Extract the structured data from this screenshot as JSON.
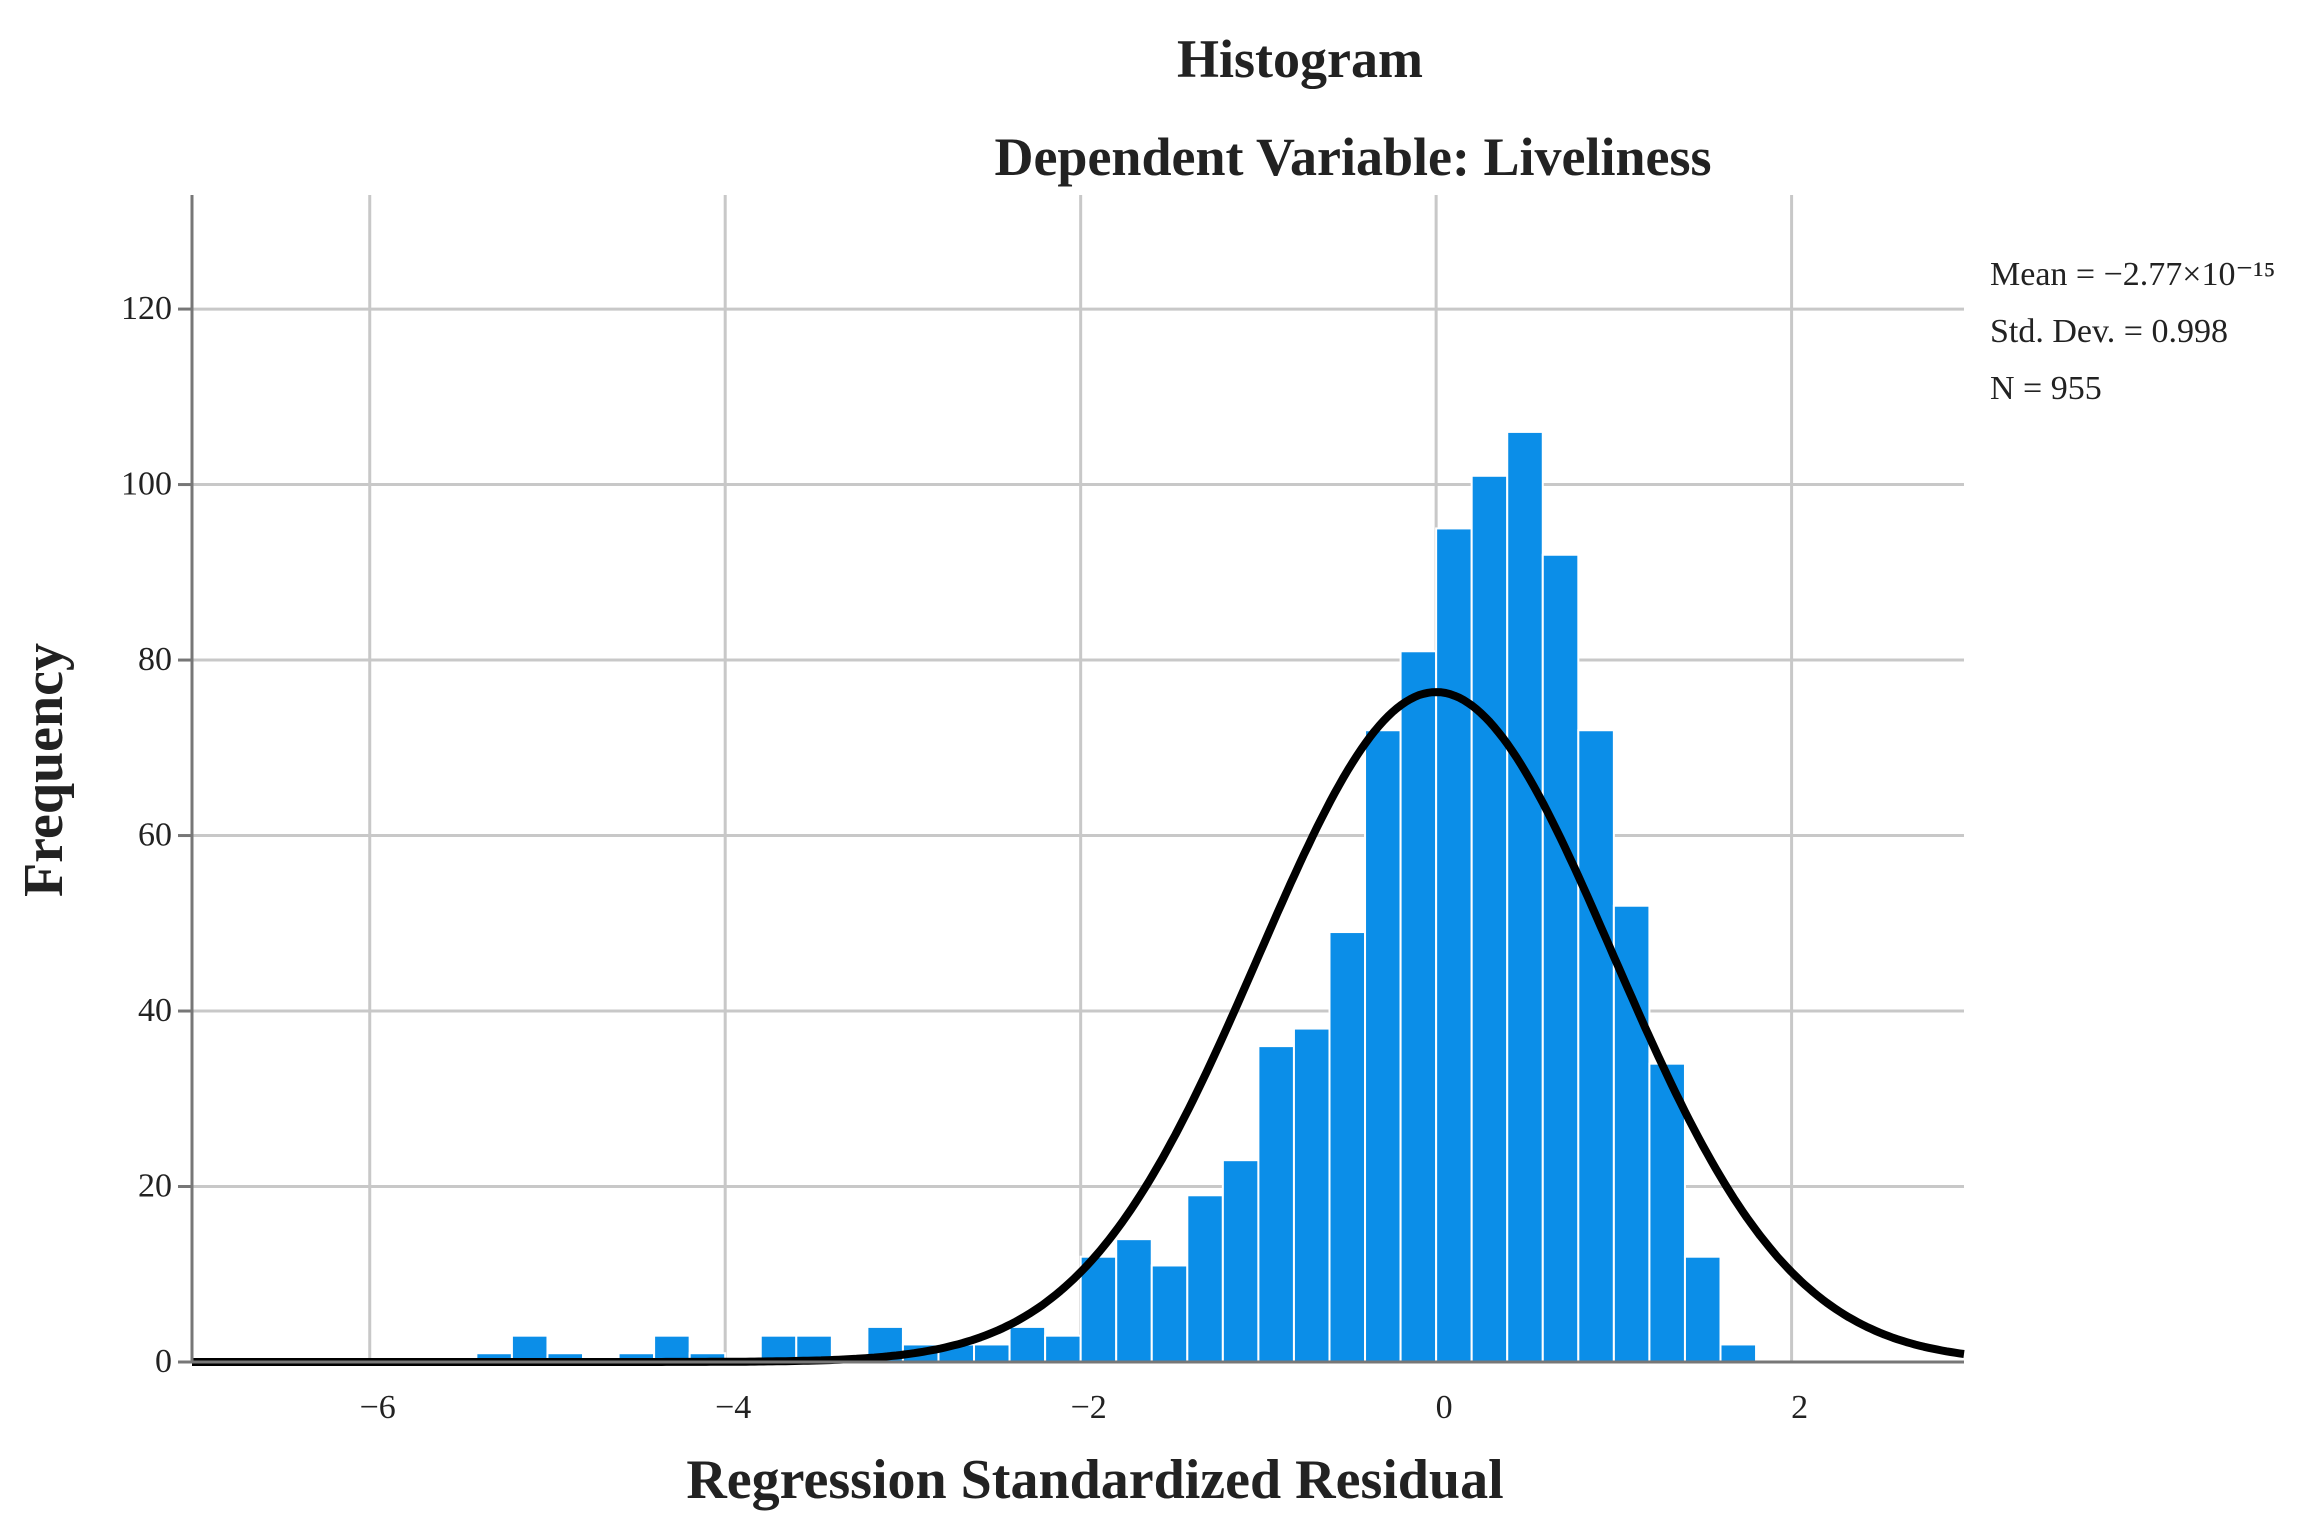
{
  "chart_data": {
    "type": "bar",
    "subtype": "histogram-with-normal-curve",
    "title": "Histogram",
    "subtitle": "Dependent Variable: Liveliness",
    "xlabel": "Regression Standardized Residual",
    "ylabel": "Frequency",
    "xlim": [
      -7.0,
      2.97
    ],
    "ylim": [
      0,
      133
    ],
    "x_ticks": [
      -6,
      -4,
      -2,
      0,
      2
    ],
    "x_tick_labels": [
      "−6",
      "−4",
      "−2",
      "0",
      "2"
    ],
    "y_ticks": [
      0,
      20,
      40,
      60,
      80,
      100,
      120
    ],
    "y_tick_labels": [
      "0",
      "20",
      "40",
      "60",
      "80",
      "100",
      "120"
    ],
    "bin_width": 0.2,
    "bins": [
      {
        "start": -5.4,
        "value": 1
      },
      {
        "start": -5.2,
        "value": 3
      },
      {
        "start": -5.0,
        "value": 1
      },
      {
        "start": -4.6,
        "value": 1
      },
      {
        "start": -4.4,
        "value": 3
      },
      {
        "start": -4.2,
        "value": 1
      },
      {
        "start": -3.8,
        "value": 3
      },
      {
        "start": -3.6,
        "value": 3
      },
      {
        "start": -3.2,
        "value": 4
      },
      {
        "start": -3.0,
        "value": 2
      },
      {
        "start": -2.8,
        "value": 2
      },
      {
        "start": -2.6,
        "value": 2
      },
      {
        "start": -2.4,
        "value": 4
      },
      {
        "start": -2.2,
        "value": 3
      },
      {
        "start": -2.0,
        "value": 12
      },
      {
        "start": -1.8,
        "value": 14
      },
      {
        "start": -1.6,
        "value": 11
      },
      {
        "start": -1.4,
        "value": 19
      },
      {
        "start": -1.2,
        "value": 23
      },
      {
        "start": -1.0,
        "value": 36
      },
      {
        "start": -0.8,
        "value": 38
      },
      {
        "start": -0.6,
        "value": 49
      },
      {
        "start": -0.4,
        "value": 72
      },
      {
        "start": -0.2,
        "value": 81
      },
      {
        "start": 0.0,
        "value": 95
      },
      {
        "start": 0.2,
        "value": 101
      },
      {
        "start": 0.4,
        "value": 106
      },
      {
        "start": 0.6,
        "value": 92
      },
      {
        "start": 0.8,
        "value": 72
      },
      {
        "start": 1.0,
        "value": 52
      },
      {
        "start": 1.2,
        "value": 34
      },
      {
        "start": 1.4,
        "value": 12
      },
      {
        "start": 1.6,
        "value": 2
      }
    ],
    "normal_curve": {
      "mean": 0,
      "std": 0.998,
      "n": 955
    },
    "stats": {
      "mean_label": "Mean = −2.77×10⁻¹⁵",
      "std_label": "Std. Dev. = 0.998",
      "n_label": "N = 955"
    },
    "colors": {
      "bar": "#0b8ee8",
      "curve": "#000000",
      "grid": "#c8c8c8"
    }
  }
}
